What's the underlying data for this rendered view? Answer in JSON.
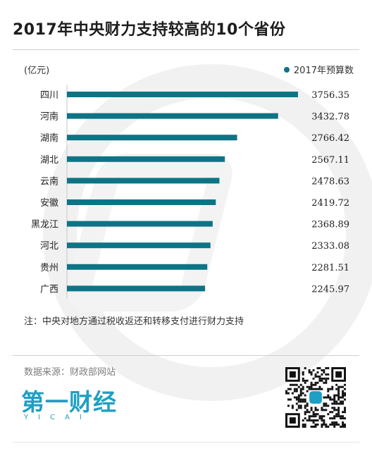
{
  "header": {
    "title": "2017年中央财力支持较高的10个省份",
    "unit": "(亿元)",
    "legend_label": "2017年预算数"
  },
  "colors": {
    "bar": "#0d7485",
    "brand": "#1e9fc4"
  },
  "chart_data": {
    "type": "bar",
    "orientation": "horizontal",
    "categories": [
      "四川",
      "河南",
      "湖南",
      "湖北",
      "云南",
      "安徽",
      "黑龙江",
      "河北",
      "贵州",
      "广西"
    ],
    "series": [
      {
        "name": "2017年预算数",
        "values": [
          3756.35,
          3432.78,
          2766.42,
          2567.11,
          2478.63,
          2419.72,
          2368.89,
          2333.08,
          2281.51,
          2245.97
        ]
      }
    ],
    "value_labels": [
      "3756.35",
      "3432.78",
      "2766.42",
      "2567.11",
      "2478.63",
      "2419.72",
      "2368.89",
      "2333.08",
      "2281.51",
      "2245.97"
    ],
    "ylabel": "(亿元)",
    "xlim": [
      0,
      3756.35
    ],
    "legend_position": "top-right",
    "grid": false
  },
  "footer": {
    "note": "注：中央对地方通过税收返还和转移支付进行财力支持",
    "source": "数据来源：财政部网站",
    "logo_text": "第一财经",
    "logo_sub": "YICAI"
  }
}
